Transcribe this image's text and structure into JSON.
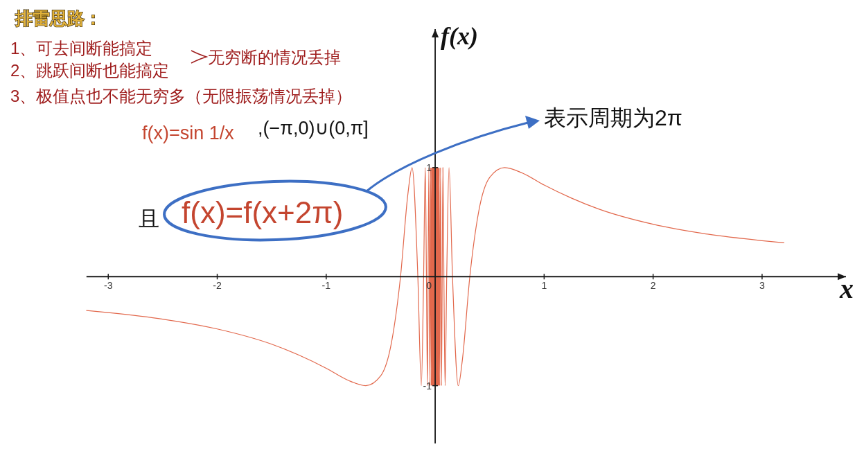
{
  "chart_data": {
    "type": "line",
    "title": "排雷思路：",
    "xlabel": "x",
    "ylabel": "f(x)",
    "xlim": [
      -3.2,
      3.77
    ],
    "ylim": [
      -1.53,
      2.27
    ],
    "xticks": [
      -3,
      -2,
      -1,
      0,
      1,
      2,
      3
    ],
    "yticks": [
      -1,
      1
    ],
    "series": [
      {
        "color": "#e2684c",
        "x": [
          -3.2,
          -3.0,
          -2.5,
          -2.0,
          -1.5,
          -1.25,
          -1.0,
          -0.8,
          -0.637,
          -0.5,
          -0.4,
          -0.318,
          -0.25,
          -0.212,
          -0.159,
          -0.127,
          -0.106,
          -0.091,
          -0.08,
          -0.071,
          -0.058,
          -0.049,
          -0.042,
          -0.037,
          -0.034,
          -0.03,
          -0.028,
          -0.025,
          -0.024,
          -0.022,
          -0.021,
          -0.019,
          -0.018,
          -0.017,
          -0.016,
          -0.015,
          -0.014,
          -0.013,
          -0.012,
          -0.011,
          -0.01,
          -0.009,
          -0.008,
          -0.007,
          -0.006,
          -0.005,
          -0.004,
          -0.003,
          -0.002,
          -0.001
        ],
        "values": [
          -0.31,
          -0.33,
          -0.39,
          -0.48,
          -0.62,
          -0.72,
          -0.84,
          -0.95,
          -1,
          -0.91,
          -0.6,
          0,
          0.76,
          1,
          0,
          -1,
          0,
          1,
          0,
          -1,
          1,
          -1,
          1,
          -1,
          1,
          -1,
          1,
          -1,
          1,
          -1,
          1,
          -1,
          1,
          -1,
          1,
          -1,
          1,
          -1,
          1,
          -1,
          1,
          -1,
          1,
          -1,
          1,
          -1,
          1,
          -1,
          1,
          -1
        ]
      },
      {
        "color": "#e2684c",
        "x": [
          0.001,
          0.002,
          0.003,
          0.004,
          0.005,
          0.006,
          0.007,
          0.008,
          0.009,
          0.01,
          0.011,
          0.012,
          0.013,
          0.014,
          0.015,
          0.016,
          0.017,
          0.018,
          0.019,
          0.021,
          0.022,
          0.024,
          0.025,
          0.028,
          0.03,
          0.034,
          0.037,
          0.042,
          0.049,
          0.058,
          0.071,
          0.08,
          0.091,
          0.106,
          0.127,
          0.159,
          0.212,
          0.25,
          0.318,
          0.4,
          0.5,
          0.637,
          0.8,
          1.0,
          1.25,
          1.5,
          2.0,
          2.5,
          3.0,
          3.2
        ],
        "values": [
          1,
          -1,
          1,
          -1,
          1,
          -1,
          1,
          -1,
          1,
          -1,
          1,
          -1,
          1,
          -1,
          1,
          -1,
          1,
          -1,
          1,
          -1,
          1,
          -1,
          1,
          -1,
          1,
          -1,
          1,
          -1,
          1,
          -1,
          1,
          0,
          -1,
          0,
          1,
          0,
          -1,
          -0.76,
          0,
          0.6,
          0.91,
          1,
          0.95,
          0.84,
          0.72,
          0.62,
          0.48,
          0.39,
          0.33,
          0.31
        ]
      }
    ],
    "annotations": [
      "1、可去间断能搞定",
      "2、跳跃间断也能搞定",
      "3、极值点也不能无穷多（无限振荡情况丢掉）",
      "无穷断的情况丢掉",
      "f(x)=sin 1/x",
      ",(−π,0)∪(0,π]",
      "且",
      "f(x)=f(x+2π)",
      "表示周期为2π"
    ]
  }
}
